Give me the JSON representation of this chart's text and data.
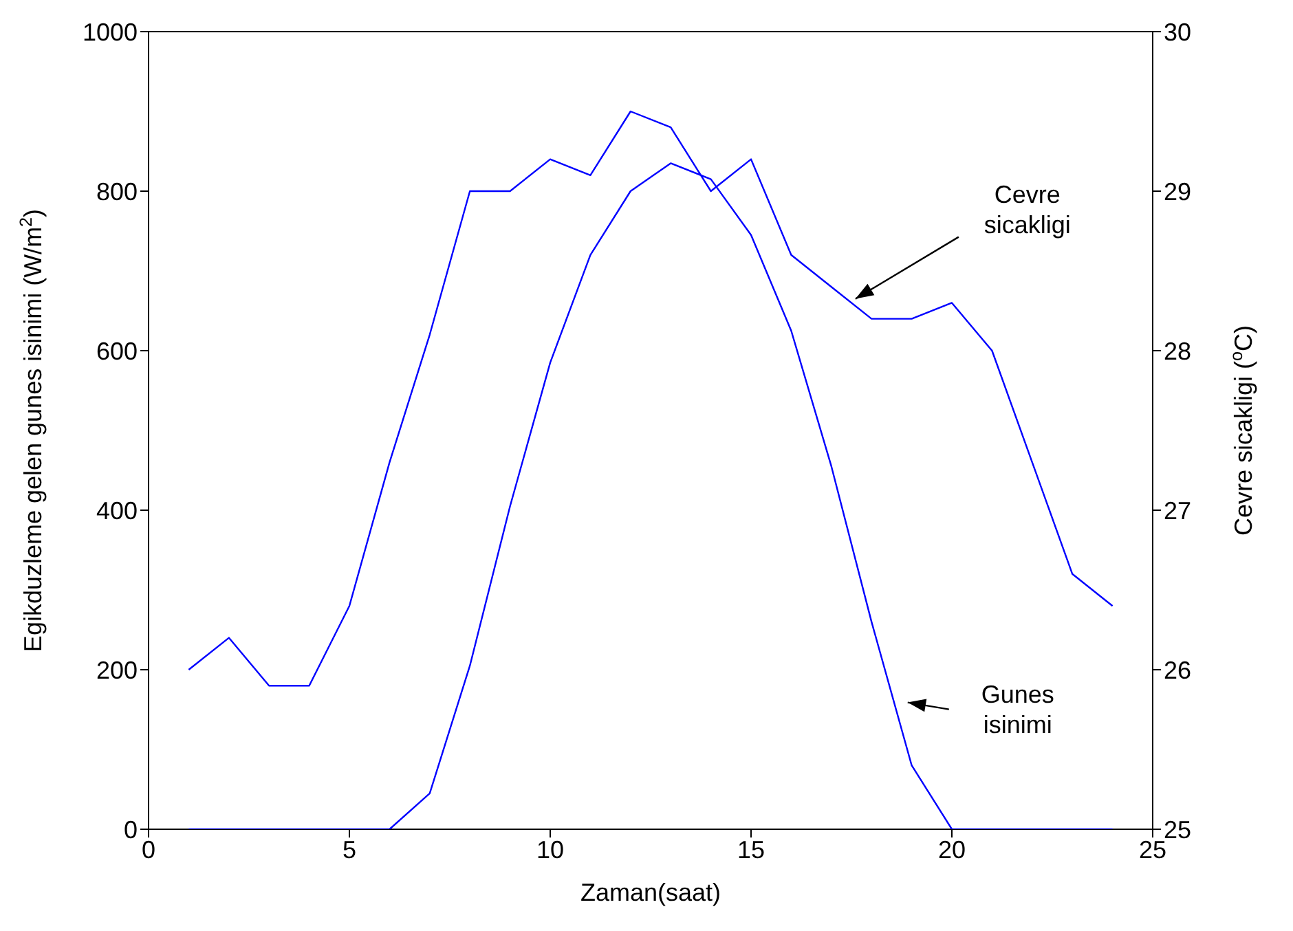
{
  "chart_data": {
    "type": "line",
    "xlabel": "Zaman(saat)",
    "ylabel": "Egikduzleme gelen gunes isinimi (W/m$^{2}$)",
    "y2label": "Cevre sicakligi ($^{o}$C)",
    "x": [
      1,
      2,
      3,
      4,
      5,
      6,
      7,
      8,
      9,
      10,
      11,
      12,
      13,
      14,
      15,
      16,
      17,
      18,
      19,
      20,
      21,
      22,
      23,
      24
    ],
    "series": [
      {
        "color": "#0000ff",
        "values": [
          0,
          0,
          0,
          0,
          0,
          0,
          45,
          205,
          405,
          585,
          720,
          800,
          835,
          815,
          745,
          625,
          455,
          260,
          80,
          0,
          0,
          0,
          0,
          0
        ]
      },
      {
        "color": "#0000ff",
        "axis": "y2",
        "values": [
          26.0,
          26.2,
          25.9,
          25.9,
          26.4,
          27.3,
          28.1,
          29.0,
          29.0,
          29.2,
          29.1,
          29.5,
          29.4,
          29.0,
          29.2,
          28.6,
          28.4,
          28.2,
          28.2,
          28.3,
          28.0,
          27.3,
          26.6,
          26.4
        ]
      }
    ],
    "xlim": [
      0,
      25
    ],
    "xticks": [
      0,
      5,
      10,
      15,
      20,
      25
    ],
    "ylim": [
      0,
      1000
    ],
    "yticks": [
      0,
      200,
      400,
      600,
      800,
      1000
    ],
    "y2lim": [
      25,
      30
    ],
    "y2ticks": [
      25,
      26,
      27,
      28,
      29,
      30
    ],
    "grid": false,
    "marker": "none",
    "line_style": "solid",
    "annotations": [
      {
        "text": "Cevre sicakligi",
        "x": 17.6,
        "y": 665
      },
      "Gunes isinimi"
    ]
  }
}
